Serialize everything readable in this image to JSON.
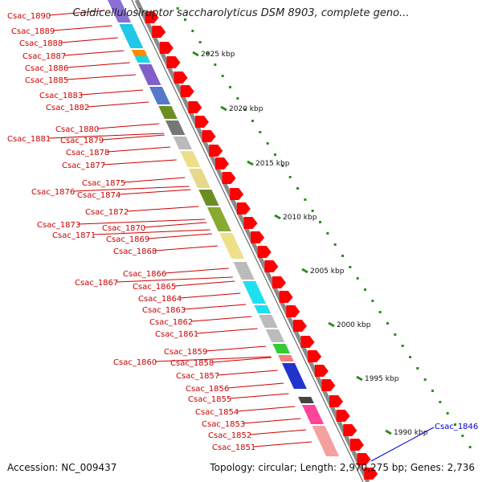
{
  "title": "Caldicellulosiruptor saccharolyticus DSM 8903, complete geno...",
  "footer": {
    "accession": "Accession: NC_009437",
    "stats": "Topology: circular; Length: 2,970,275 bp; Genes: 2,736"
  },
  "scale_ticks": [
    "2025 kbp",
    "2020 kbp",
    "2015 kbp",
    "2010 kbp",
    "2005 kbp",
    "2000 kbp",
    "1995 kbp",
    "1990 kbp"
  ],
  "genes_left": [
    "Csac_1890",
    "Csac_1889",
    "Csac_1888",
    "Csac_1887",
    "Csac_1886",
    "Csac_1885",
    "Csac_1883",
    "Csac_1882",
    "Csac_1881",
    "Csac_1880",
    "Csac_1879",
    "Csac_1878",
    "Csac_1877",
    "Csac_1876",
    "Csac_1875",
    "Csac_1874",
    "Csac_1873",
    "Csac_1872",
    "Csac_1871",
    "Csac_1870",
    "Csac_1869",
    "Csac_1868",
    "Csac_1867",
    "Csac_1866",
    "Csac_1865",
    "Csac_1864",
    "Csac_1863",
    "Csac_1862",
    "Csac_1861",
    "Csac_1860",
    "Csac_1859",
    "Csac_1858",
    "Csac_1857",
    "Csac_1856",
    "Csac_1855",
    "Csac_1854",
    "Csac_1853",
    "Csac_1852",
    "Csac_1851"
  ],
  "gene_right": "Csac_1846",
  "colors": {
    "gene_label": "#cc0000",
    "highlight_label": "#0000cc",
    "cds_arrow": "#ff0000",
    "scale_dots": "#2e8b22",
    "backbone": "#888888"
  }
}
